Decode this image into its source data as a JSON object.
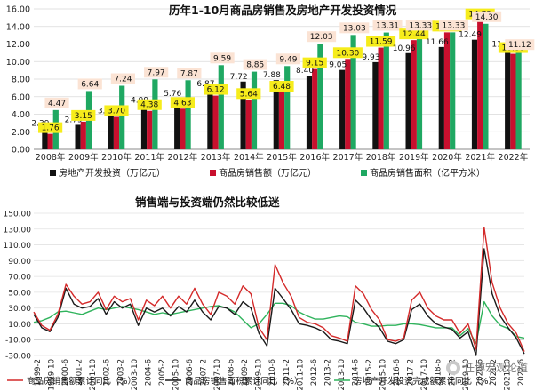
{
  "colors": {
    "investment": "#111111",
    "sales_amount": "#c8102e",
    "sales_area": "#1fa862",
    "highlight_label": "#f6ec1b",
    "label_box": "#fbe3d4",
    "line_sales_amount": "#d42a2a",
    "line_sales_area": "#1a1a1a",
    "line_investment": "#2fb35c"
  },
  "watermark": "任博宏观论道",
  "chart_data": [
    {
      "type": "bar",
      "title": "历年1-10月商品房销售及房地产开发投资情况",
      "categories": [
        "2008年",
        "2009年",
        "2010年",
        "2011年",
        "2012年",
        "2013年",
        "2014年",
        "2015年",
        "2016年",
        "2017年",
        "2018年",
        "2019年",
        "2020年",
        "2021年",
        "2022年"
      ],
      "ylim": [
        0,
        16
      ],
      "yticks": [
        "0.00",
        "2.00",
        "4.00",
        "6.00",
        "8.00",
        "10.00",
        "12.00",
        "14.00",
        "16.00"
      ],
      "series": [
        {
          "name": "房地产开发投资（万亿元）",
          "color": "#111111",
          "values": [
            2.39,
            2.79,
            3.81,
            4.99,
            5.76,
            6.87,
            7.72,
            7.88,
            8.4,
            9.05,
            9.93,
            10.96,
            11.66,
            12.49,
            11.39
          ]
        },
        {
          "name": "商品房销售额（万亿元）",
          "color": "#c8102e",
          "values": [
            1.76,
            3.15,
            3.7,
            4.38,
            4.63,
            6.12,
            5.64,
            6.48,
            9.15,
            10.3,
            11.59,
            12.44,
            13.33,
            14.72,
            10.88
          ]
        },
        {
          "name": "商品房销售面积（亿平方米）",
          "color": "#1fa862",
          "values": [
            4.47,
            6.64,
            7.24,
            7.97,
            7.87,
            9.59,
            8.85,
            9.49,
            12.03,
            13.03,
            13.31,
            13.33,
            13.33,
            14.3,
            11.12
          ]
        }
      ],
      "labels": {
        "investment": [
          "2.39",
          "2.79",
          "3.81",
          "4.99",
          "5.76",
          "6.87",
          "7.72",
          "7.88",
          "8.40",
          "9.05",
          "9.93",
          "10.96",
          "11.66",
          "12.49",
          "11.39"
        ],
        "sales_amount": [
          "1.76",
          "3.15",
          "3.70",
          "4.38",
          "4.63",
          "6.12",
          "5.64",
          "6.48",
          "9.15",
          "10.30",
          "11.59",
          "12.44",
          "13.33",
          "14.72",
          "10.88"
        ],
        "sales_area": [
          "4.47",
          "6.64",
          "7.24",
          "7.97",
          "7.87",
          "9.59",
          "8.85",
          "9.49",
          "12.03",
          "13.03",
          "13.31",
          "13.33",
          "13.33",
          "14.30",
          "11.12"
        ]
      },
      "legend_position": "bottom"
    },
    {
      "type": "line",
      "title": "销售端与投资端仍然比较低迷",
      "ylim": [
        -30,
        150
      ],
      "yticks": [
        "150.00",
        "130.00",
        "110.00",
        "90.00",
        "70.00",
        "50.00",
        "30.00",
        "10.00",
        "-10.00",
        "-30.00"
      ],
      "xticks": [
        "1999-2",
        "1999-10",
        "2000-6",
        "2001-2",
        "2001-10",
        "2002-6",
        "2003-2",
        "2003-10",
        "2004-6",
        "2005-2",
        "2005-10",
        "2006-6",
        "2007-2",
        "2007-10",
        "2008-6",
        "2009-2",
        "2009-10",
        "2010-6",
        "2011-2",
        "2011-10",
        "2012-6",
        "2013-2",
        "2013-10",
        "2014-6",
        "2015-2",
        "2015-10",
        "2016-6",
        "2017-2",
        "2017-10",
        "2018-6",
        "2019-2",
        "2019-10",
        "2020-6",
        "2021-2",
        "2021-10",
        "2022-6"
      ],
      "series": [
        {
          "name": "商品房销售额累计同比（%）",
          "color": "#d42a2a",
          "values": [
            25,
            8,
            2,
            22,
            60,
            45,
            35,
            38,
            50,
            28,
            45,
            38,
            42,
            15,
            40,
            33,
            45,
            30,
            45,
            35,
            55,
            35,
            22,
            50,
            45,
            35,
            58,
            48,
            5,
            -10,
            85,
            62,
            45,
            18,
            12,
            10,
            5,
            -5,
            -8,
            -12,
            58,
            48,
            28,
            15,
            -10,
            -12,
            -8,
            40,
            50,
            30,
            20,
            15,
            15,
            -2,
            10,
            -22,
            132,
            62,
            30,
            10,
            -2,
            -25
          ]
        },
        {
          "name": "商品房销售面积累计同比（%）",
          "color": "#1a1a1a",
          "values": [
            22,
            5,
            0,
            18,
            55,
            35,
            30,
            32,
            42,
            22,
            38,
            30,
            35,
            8,
            30,
            25,
            30,
            20,
            32,
            25,
            40,
            25,
            15,
            32,
            30,
            22,
            38,
            30,
            -2,
            -18,
            55,
            42,
            28,
            10,
            8,
            5,
            0,
            -10,
            -12,
            -15,
            40,
            30,
            15,
            5,
            -12,
            -15,
            -10,
            28,
            35,
            20,
            10,
            6,
            3,
            -8,
            0,
            -30,
            105,
            48,
            20,
            5,
            -8,
            -28
          ]
        },
        {
          "name": "房地产开发投资完成额累计同比（%）",
          "color": "#2fb35c",
          "values": [
            12,
            14,
            18,
            25,
            26,
            24,
            22,
            26,
            30,
            28,
            30,
            32,
            30,
            28,
            25,
            22,
            24,
            22,
            24,
            26,
            28,
            30,
            32,
            33,
            30,
            25,
            15,
            5,
            10,
            22,
            36,
            36,
            33,
            25,
            20,
            16,
            16,
            18,
            20,
            19,
            12,
            10,
            7,
            7,
            8,
            8,
            10,
            10,
            9,
            7,
            5,
            5,
            5,
            -5,
            4,
            -15,
            38,
            20,
            8,
            4,
            -6,
            -8
          ]
        }
      ],
      "legend_position": "bottom"
    }
  ]
}
